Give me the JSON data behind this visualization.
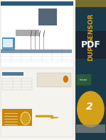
{
  "bg_color": "#f0ede8",
  "right_panel_color": "#1a3a4a",
  "sensor_text": "SENSOR",
  "dup_text": "DUP",
  "sensor_color": "#d4a017",
  "pdf_text": "PDF",
  "pdf_text_color": "#ffffff",
  "circle_color": "#d4a017",
  "header_color": "#2a5a7a",
  "blue_box_color": "#4a90b8",
  "yellow_accent": "#d4a017",
  "logo_color": "#4a8a5a"
}
